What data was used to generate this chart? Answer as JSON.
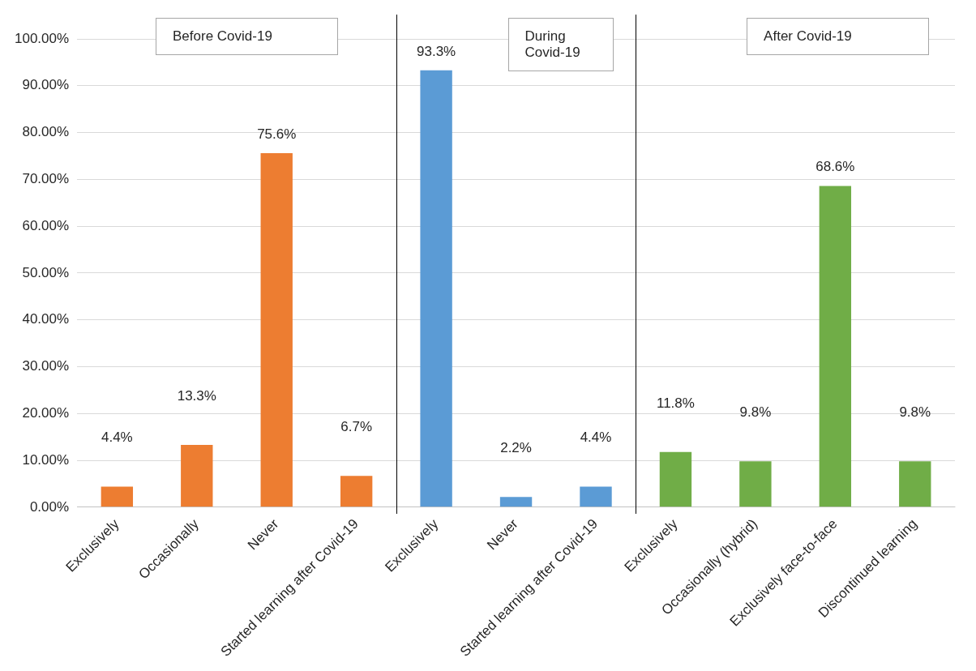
{
  "chart_data": {
    "type": "bar",
    "categories": [
      "Exclusively",
      "Occasionally",
      "Never",
      "Started learning after Covid-19",
      "Exclusively",
      "Never",
      "Started learning after Covid-19",
      "Exclusively",
      "Occasionally (hybrid)",
      "Exclusively face-to-face",
      "Discontinued learning"
    ],
    "values": [
      4.4,
      13.3,
      75.6,
      6.7,
      93.3,
      2.2,
      4.4,
      11.8,
      9.8,
      68.6,
      9.8
    ],
    "colors": [
      "#ed7d31",
      "#ed7d31",
      "#ed7d31",
      "#ed7d31",
      "#5b9bd5",
      "#5b9bd5",
      "#5b9bd5",
      "#70ad47",
      "#70ad47",
      "#70ad47",
      "#70ad47"
    ],
    "value_labels": [
      "4.4%",
      "13.3%",
      "75.6%",
      "6.7%",
      "93.3%",
      "2.2%",
      "4.4%",
      "11.8%",
      "9.8%",
      "68.6%",
      "9.8%"
    ],
    "ylim": [
      0,
      100
    ],
    "yticks": [
      {
        "value": 0,
        "label": "0.00%"
      },
      {
        "value": 10,
        "label": "10.00%"
      },
      {
        "value": 20,
        "label": "20.00%"
      },
      {
        "value": 30,
        "label": "30.00%"
      },
      {
        "value": 40,
        "label": "40.00%"
      },
      {
        "value": 50,
        "label": "50.00%"
      },
      {
        "value": 60,
        "label": "60.00%"
      },
      {
        "value": 70,
        "label": "70.00%"
      },
      {
        "value": 80,
        "label": "80.00%"
      },
      {
        "value": 90,
        "label": "90.00%"
      },
      {
        "value": 100,
        "label": "100.00%"
      }
    ],
    "annotations": [
      "Before Covid-19",
      "During Covid-19",
      "After Covid-19"
    ],
    "grid": "y",
    "legend": false
  }
}
